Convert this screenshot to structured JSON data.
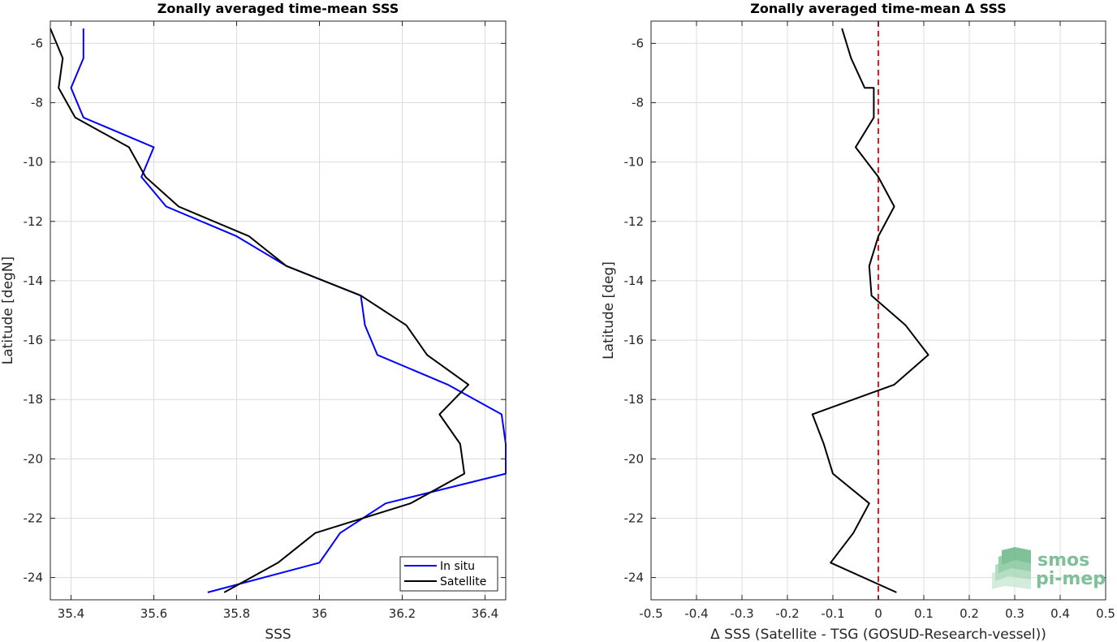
{
  "colors": {
    "in_situ": "#0000ff",
    "satellite": "#000000",
    "zero_line": "#e41a1c",
    "grid": "#dcdcdc",
    "axis": "#262626",
    "logo": "#7fbf9a"
  },
  "logo": {
    "line1": "smos",
    "line2": "pi-mep"
  },
  "chart_data": [
    {
      "type": "line",
      "title": "Zonally averaged time-mean SSS",
      "xlabel": "SSS",
      "ylabel": "Latitude [degN]",
      "xlim": [
        35.35,
        36.45
      ],
      "ylim": [
        -24.75,
        -5.25
      ],
      "xticks": [
        35.4,
        35.6,
        35.8,
        36,
        36.2,
        36.4
      ],
      "xtick_labels": [
        "35.4",
        "35.6",
        "35.8",
        "36",
        "36.2",
        "36.4"
      ],
      "yticks": [
        -6,
        -8,
        -10,
        -12,
        -14,
        -16,
        -18,
        -20,
        -22,
        -24
      ],
      "ytick_labels": [
        "-6",
        "-8",
        "-10",
        "-12",
        "-14",
        "-16",
        "-18",
        "-20",
        "-22",
        "-24"
      ],
      "grid": true,
      "legend": "bottom-right",
      "series": [
        {
          "name": "In situ",
          "color": "#0000ff",
          "points": [
            [
              35.43,
              -5.5
            ],
            [
              35.43,
              -6.5
            ],
            [
              35.4,
              -7.5
            ],
            [
              35.43,
              -8.5
            ],
            [
              35.6,
              -9.5
            ],
            [
              35.57,
              -10.5
            ],
            [
              35.63,
              -11.5
            ],
            [
              35.8,
              -12.5
            ],
            [
              35.92,
              -13.5
            ],
            [
              36.1,
              -14.5
            ],
            [
              36.11,
              -15.5
            ],
            [
              36.14,
              -16.5
            ],
            [
              36.31,
              -17.5
            ],
            [
              36.44,
              -18.5
            ],
            [
              36.45,
              -19.5
            ],
            [
              36.45,
              -20.5
            ],
            [
              36.16,
              -21.5
            ],
            [
              36.05,
              -22.5
            ],
            [
              36.0,
              -23.5
            ],
            [
              35.73,
              -24.5
            ]
          ]
        },
        {
          "name": "Satellite",
          "color": "#000000",
          "points": [
            [
              35.35,
              -5.5
            ],
            [
              35.38,
              -6.5
            ],
            [
              35.37,
              -7.5
            ],
            [
              35.41,
              -8.5
            ],
            [
              35.54,
              -9.5
            ],
            [
              35.58,
              -10.5
            ],
            [
              35.66,
              -11.5
            ],
            [
              35.83,
              -12.5
            ],
            [
              35.92,
              -13.5
            ],
            [
              36.1,
              -14.5
            ],
            [
              36.21,
              -15.5
            ],
            [
              36.26,
              -16.5
            ],
            [
              36.36,
              -17.5
            ],
            [
              36.29,
              -18.5
            ],
            [
              36.34,
              -19.5
            ],
            [
              36.35,
              -20.5
            ],
            [
              36.22,
              -21.5
            ],
            [
              35.99,
              -22.5
            ],
            [
              35.9,
              -23.5
            ],
            [
              35.77,
              -24.5
            ]
          ]
        }
      ]
    },
    {
      "type": "line",
      "title": "Zonally averaged time-mean Δ SSS",
      "xlabel": "Δ SSS (Satellite - TSG (GOSUD-Research-vessel))",
      "ylabel": "Latitude [deg]",
      "xlim": [
        -0.5,
        0.5
      ],
      "ylim": [
        -24.75,
        -5.25
      ],
      "xticks": [
        -0.5,
        -0.4,
        -0.3,
        -0.2,
        -0.1,
        0,
        0.1,
        0.2,
        0.3,
        0.4,
        0.5
      ],
      "xtick_labels": [
        "-0.5",
        "-0.4",
        "-0.3",
        "-0.2",
        "-0.1",
        "0",
        "0.1",
        "0.2",
        "0.3",
        "0.4",
        "0.5"
      ],
      "yticks": [
        -6,
        -8,
        -10,
        -12,
        -14,
        -16,
        -18,
        -20,
        -22,
        -24
      ],
      "ytick_labels": [
        "-6",
        "-8",
        "-10",
        "-12",
        "-14",
        "-16",
        "-18",
        "-20",
        "-22",
        "-24"
      ],
      "grid": true,
      "reference_line": {
        "x": 0,
        "style": "dashed",
        "color": "#e41a1c"
      },
      "series": [
        {
          "color": "#000000",
          "points": [
            [
              -0.08,
              -5.5
            ],
            [
              -0.06,
              -6.5
            ],
            [
              -0.03,
              -7.5
            ],
            [
              -0.01,
              -7.5
            ],
            [
              -0.01,
              -8.5
            ],
            [
              -0.05,
              -9.5
            ],
            [
              0.0,
              -10.5
            ],
            [
              0.035,
              -11.5
            ],
            [
              0.0,
              -12.5
            ],
            [
              -0.02,
              -13.5
            ],
            [
              -0.015,
              -14.5
            ],
            [
              0.06,
              -15.5
            ],
            [
              0.11,
              -16.5
            ],
            [
              0.035,
              -17.5
            ],
            [
              -0.145,
              -18.5
            ],
            [
              -0.12,
              -19.5
            ],
            [
              -0.1,
              -20.5
            ],
            [
              -0.02,
              -21.5
            ],
            [
              -0.055,
              -22.5
            ],
            [
              -0.105,
              -23.5
            ],
            [
              0.04,
              -24.5
            ]
          ]
        }
      ]
    }
  ]
}
